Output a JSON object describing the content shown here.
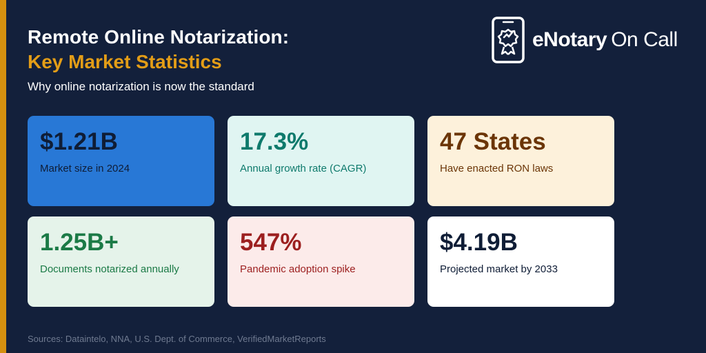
{
  "header": {
    "title_line1": "Remote Online Notarization:",
    "title_line2": "Key Market Statistics",
    "subtitle": "Why online notarization is now the standard"
  },
  "logo": {
    "icon": "phone-certificate-icon",
    "text_bold": "eNotary",
    "text_light": "On Call"
  },
  "stats": [
    {
      "value": "$1.21B",
      "label": "Market size in 2024"
    },
    {
      "value": "17.3%",
      "label": "Annual growth rate (CAGR)"
    },
    {
      "value": "47 States",
      "label": "Have enacted RON laws"
    },
    {
      "value": "1.25B+",
      "label": "Documents notarized annually"
    },
    {
      "value": "547%",
      "label": "Pandemic adoption spike"
    },
    {
      "value": "$4.19B",
      "label": "Projected market by 2033"
    }
  ],
  "footer": {
    "sources": "Sources: Dataintelo, NNA, U.S. Dept. of Commerce, VerifiedMarketReports"
  },
  "colors": {
    "background": "#13203b",
    "accent": "#d4900f",
    "title_highlight": "#e39d17"
  }
}
